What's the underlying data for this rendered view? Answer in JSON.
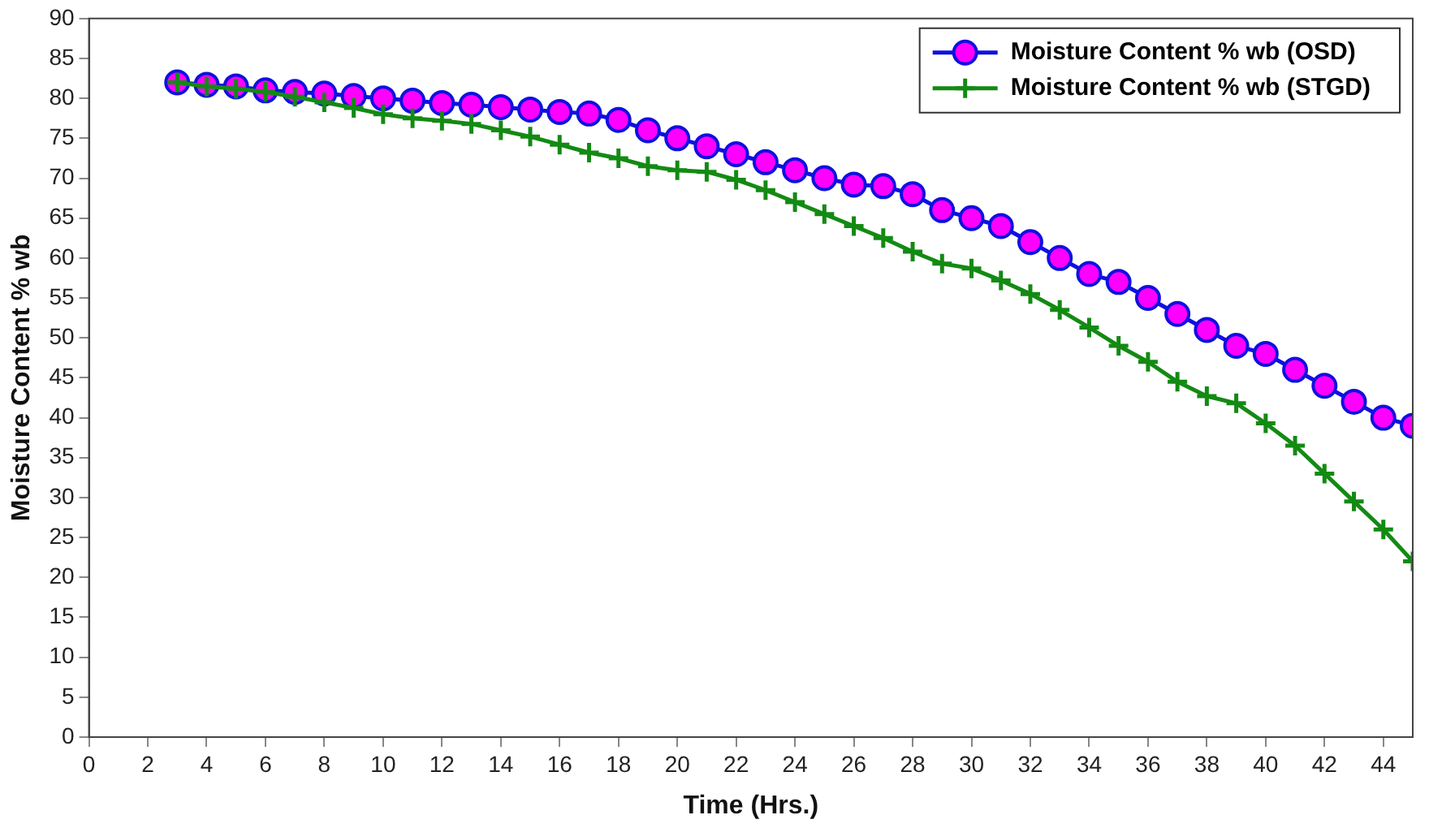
{
  "chart_data": {
    "type": "line",
    "xlabel": "Time (Hrs.)",
    "ylabel": "Moisture Content % wb",
    "x": [
      3,
      4,
      5,
      6,
      7,
      8,
      9,
      10,
      11,
      12,
      13,
      14,
      15,
      16,
      17,
      18,
      19,
      20,
      21,
      22,
      23,
      24,
      25,
      26,
      27,
      28,
      29,
      30,
      31,
      32,
      33,
      34,
      35,
      36,
      37,
      38,
      39,
      40,
      41,
      42,
      43,
      44,
      45
    ],
    "series": [
      {
        "name": "Moisture Content % wb (OSD)",
        "color": "#ff00ff",
        "marker": "circle",
        "values": [
          82,
          81.7,
          81.5,
          81,
          80.8,
          80.6,
          80.3,
          80,
          79.7,
          79.4,
          79.2,
          78.9,
          78.6,
          78.3,
          78.1,
          77.3,
          76,
          75,
          74,
          73,
          72,
          71,
          70,
          69.2,
          69,
          68,
          66,
          65,
          64,
          62,
          60,
          58,
          57,
          55,
          53,
          51,
          49,
          48,
          46,
          44,
          42,
          40,
          39
        ]
      },
      {
        "name": "Moisture Content % wb (STGD)",
        "color": "#138a13",
        "marker": "cross",
        "values": [
          82,
          81.5,
          81.2,
          80.8,
          80.2,
          79.5,
          78.8,
          78,
          77.5,
          77.2,
          76.8,
          76,
          75.2,
          74.2,
          73.2,
          72.5,
          71.5,
          71,
          70.8,
          69.8,
          68.5,
          67,
          65.5,
          64,
          62.5,
          60.8,
          59.3,
          58.7,
          57.2,
          55.5,
          53.5,
          51.3,
          49,
          47,
          44.5,
          42.7,
          41.8,
          39.3,
          36.5,
          33,
          29.5,
          26,
          22
        ]
      }
    ],
    "xlim": [
      0,
      45
    ],
    "xticks": [
      0,
      2,
      4,
      6,
      8,
      10,
      12,
      14,
      16,
      18,
      20,
      22,
      24,
      26,
      28,
      30,
      32,
      34,
      36,
      38,
      40,
      42,
      44
    ],
    "ylim": [
      0,
      90
    ],
    "yticks": [
      0,
      5,
      10,
      15,
      20,
      25,
      30,
      35,
      40,
      45,
      50,
      55,
      60,
      65,
      70,
      75,
      80,
      85,
      90
    ],
    "grid": false,
    "legend": "top right",
    "line_style": "solid"
  }
}
